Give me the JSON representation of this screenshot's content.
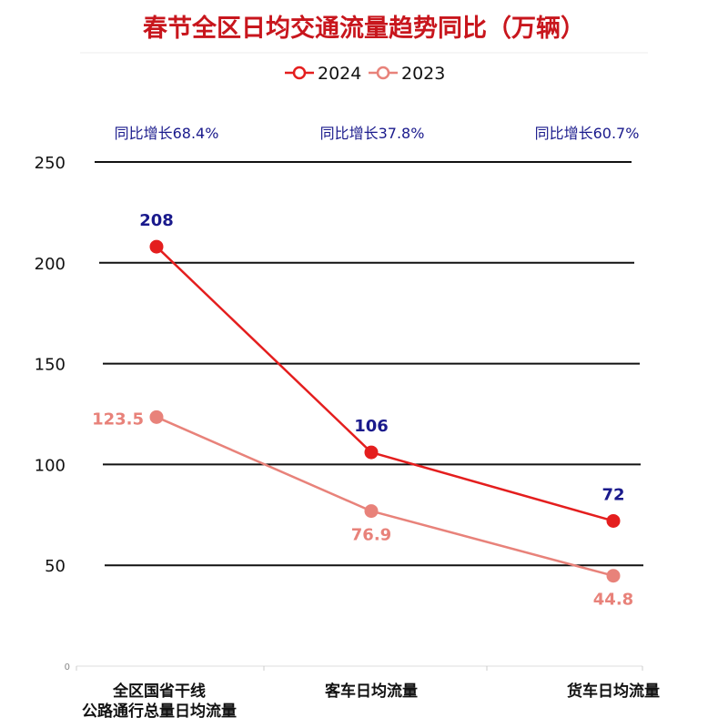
{
  "chart_data": {
    "type": "line",
    "title": "春节全区日均交通流量趋势同比（万辆）",
    "categories": [
      "全区国省干线|公路通行总量日均流量",
      "客车日均流量",
      "货车日均流量"
    ],
    "category_labels": [
      [
        "全区国省干线",
        "公路通行总量日均流量"
      ],
      [
        "客车日均流量"
      ],
      [
        "货车日均流量"
      ]
    ],
    "series": [
      {
        "name": "2024",
        "values": [
          208,
          106,
          72
        ],
        "labels": [
          "208",
          "106",
          "72"
        ],
        "color": "#e41e1e",
        "label_color": "#1a1a8c"
      },
      {
        "name": "2023",
        "values": [
          123.5,
          76.9,
          44.8
        ],
        "labels": [
          "123.5",
          "76.9",
          "44.8"
        ],
        "color": "#e8827a",
        "label_color": "#e8827a"
      }
    ],
    "yoy_labels": [
      "同比增长68.4%",
      "同比增长37.8%",
      "同比增长60.7%"
    ],
    "y_ticks": [
      0,
      50,
      100,
      150,
      200,
      250
    ],
    "ylim": [
      0,
      250
    ],
    "grid": true,
    "legend_position": "top-center",
    "xlabel": "",
    "ylabel": ""
  },
  "colors": {
    "title": "#c8161d",
    "axis_text": "#111111",
    "yoy_text": "#1a1a8c",
    "gridline": "#111111",
    "legend_text": "#111111"
  }
}
